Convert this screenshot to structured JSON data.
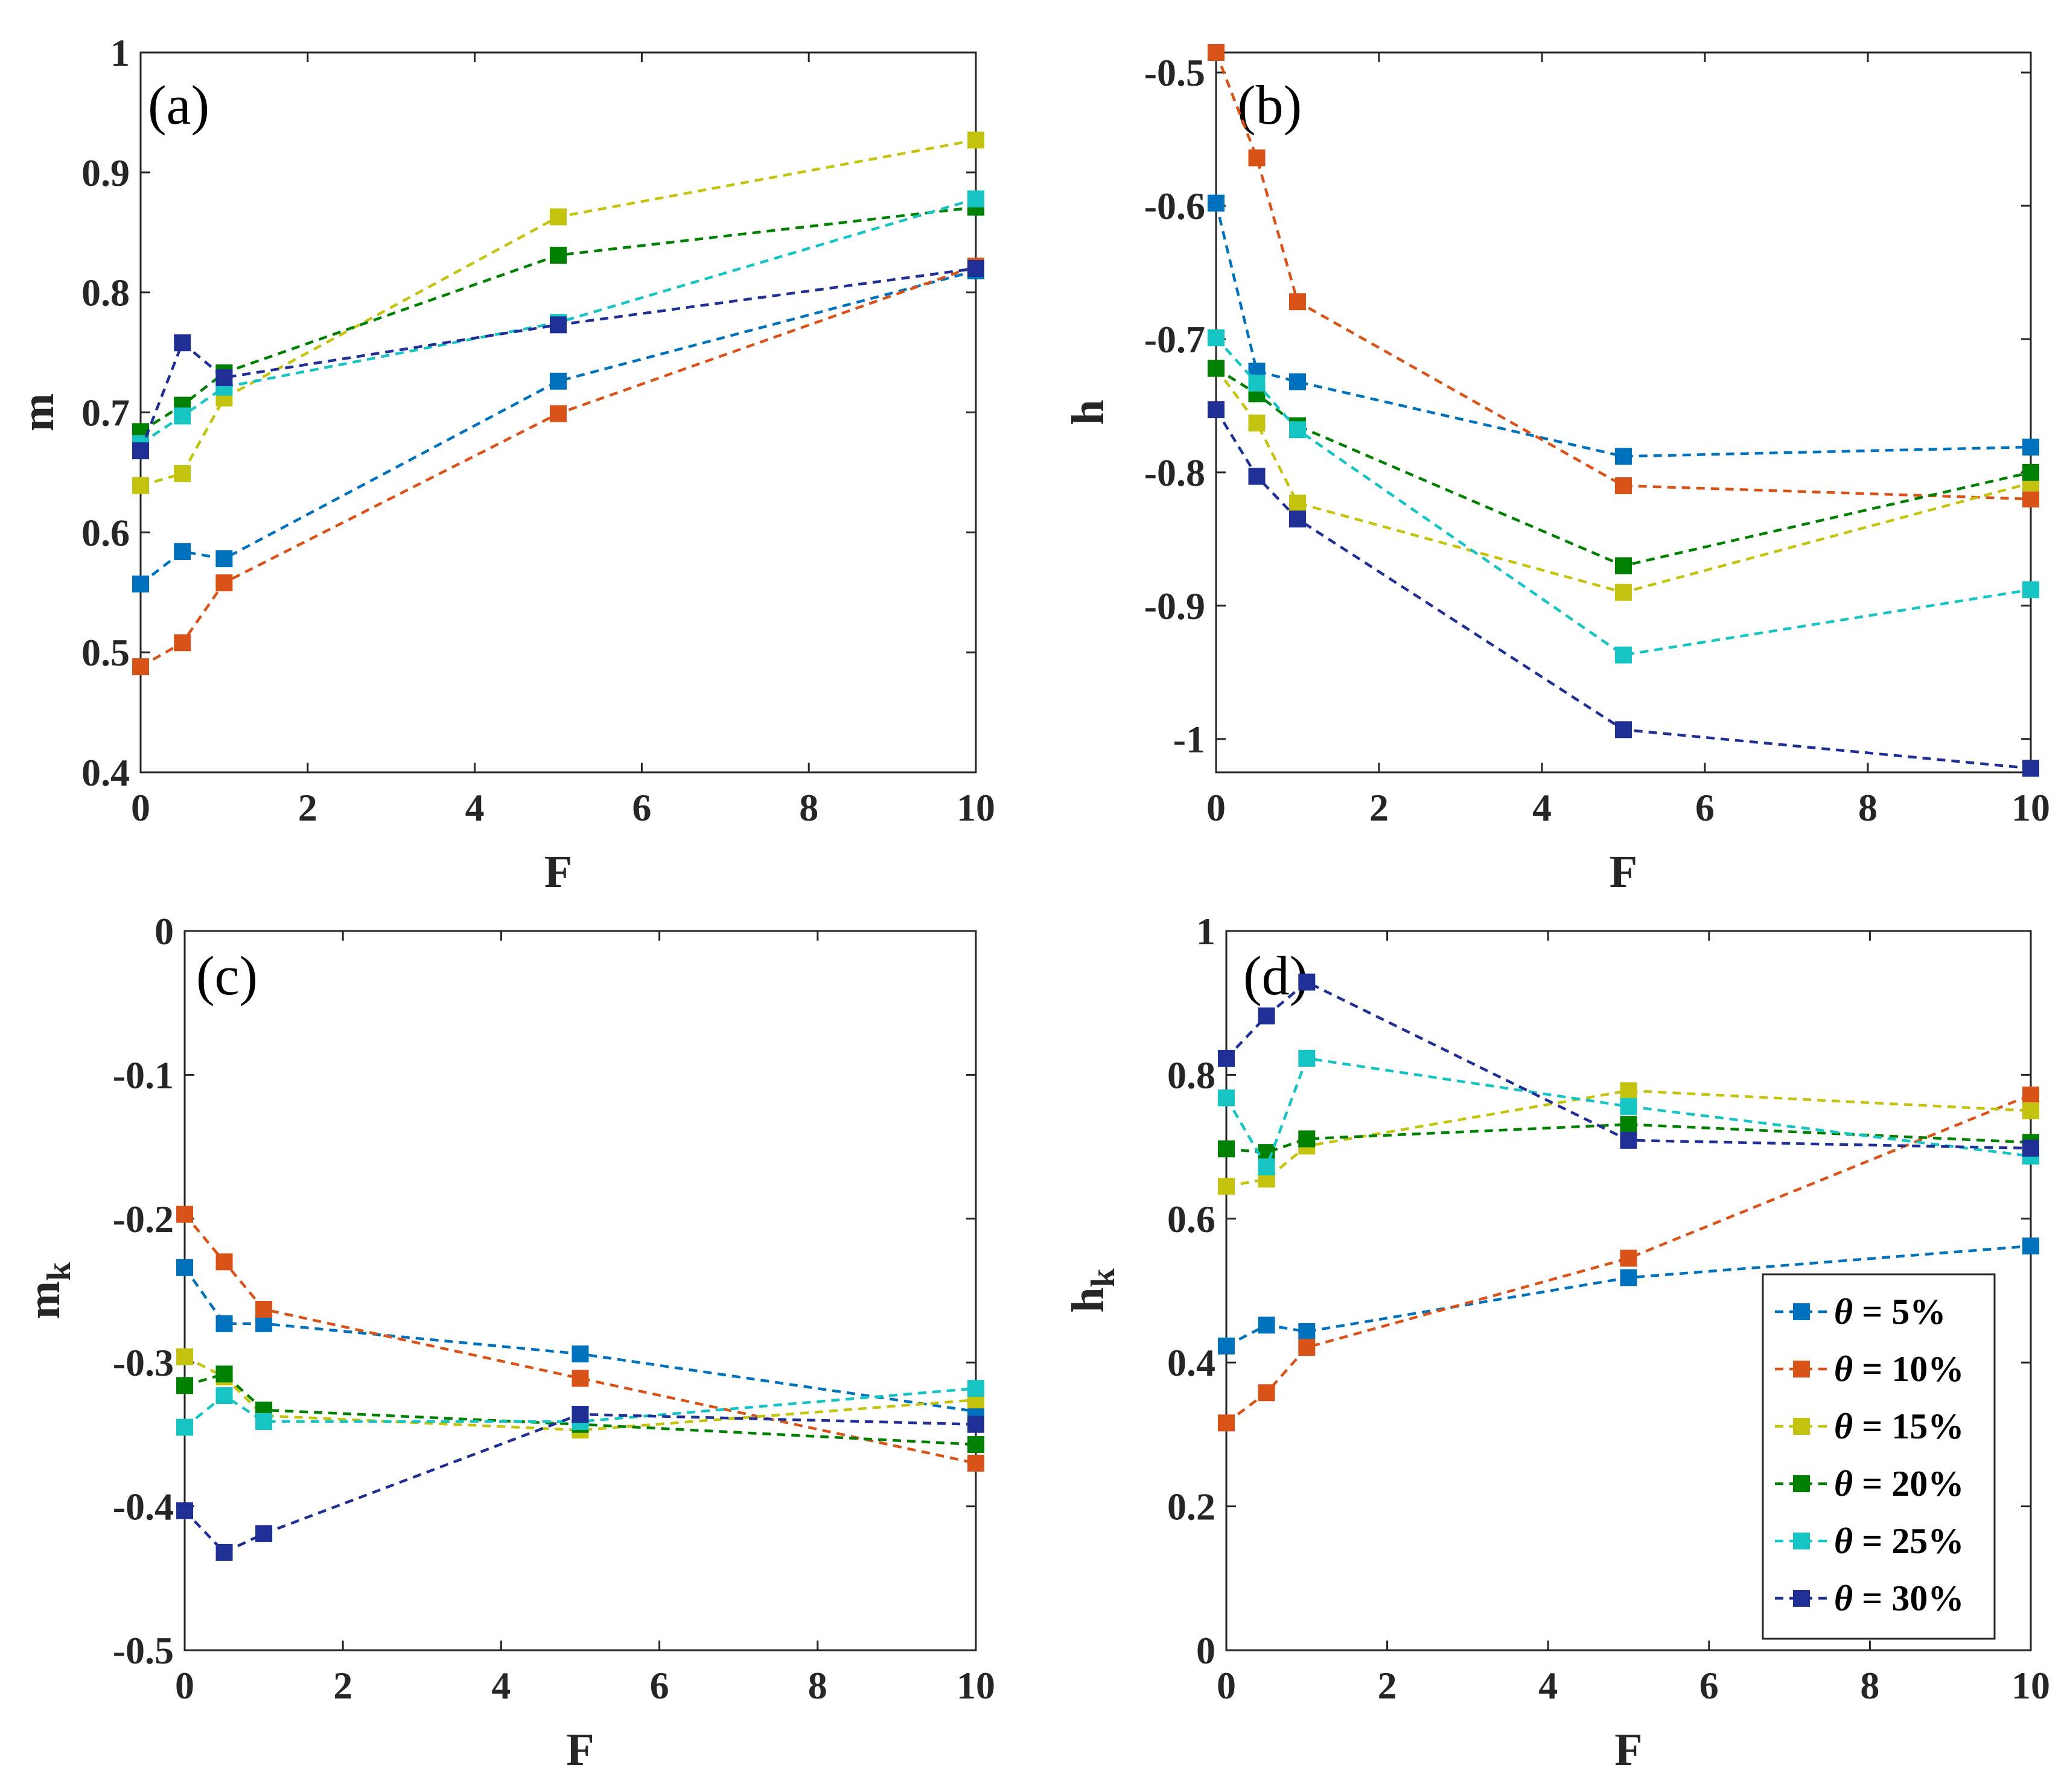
{
  "chart_data": [
    {
      "panel": "(a)",
      "type": "line",
      "xlabel": "F",
      "ylabel": "m",
      "xlim": [
        0,
        10
      ],
      "ylim": [
        0.4,
        1.0
      ],
      "xticks": [
        0,
        2,
        4,
        6,
        8,
        10
      ],
      "xtick_labels": [
        "0",
        "2",
        "4",
        "6",
        "8",
        "10"
      ],
      "yticks": [
        0.4,
        0.5,
        0.6,
        0.7,
        0.8,
        0.9,
        1.0
      ],
      "ytick_labels": [
        "0.4",
        "0.5",
        "0.6",
        "0.7",
        "0.8",
        "0.9",
        "1"
      ],
      "x": [
        0,
        0.5,
        1,
        5,
        10
      ],
      "series": [
        {
          "name": "θ = 5%",
          "values": [
            0.557,
            0.584,
            0.578,
            0.726,
            0.818
          ]
        },
        {
          "name": "θ = 10%",
          "values": [
            0.488,
            0.508,
            0.558,
            0.699,
            0.822
          ]
        },
        {
          "name": "θ = 15%",
          "values": [
            0.639,
            0.649,
            0.712,
            0.863,
            0.927
          ]
        },
        {
          "name": "θ = 20%",
          "values": [
            0.684,
            0.706,
            0.733,
            0.831,
            0.871
          ]
        },
        {
          "name": "θ = 25%",
          "values": [
            0.674,
            0.697,
            0.721,
            0.775,
            0.878
          ]
        },
        {
          "name": "θ = 30%",
          "values": [
            0.668,
            0.758,
            0.729,
            0.773,
            0.82
          ]
        }
      ]
    },
    {
      "panel": "(b)",
      "type": "line",
      "xlabel": "F",
      "ylabel": "h",
      "xlim": [
        0,
        10
      ],
      "ylim": [
        -1.025,
        -0.485
      ],
      "xticks": [
        0,
        2,
        4,
        6,
        8,
        10
      ],
      "xtick_labels": [
        "0",
        "2",
        "4",
        "6",
        "8",
        "10"
      ],
      "yticks": [
        -1.0,
        -0.9,
        -0.8,
        -0.7,
        -0.6,
        -0.5
      ],
      "ytick_labels": [
        "-1",
        "-0.9",
        "-0.8",
        "-0.7",
        "-0.6",
        "-0.5"
      ],
      "x": [
        0,
        0.5,
        1,
        5,
        10
      ],
      "series": [
        {
          "name": "θ = 5%",
          "values": [
            -0.598,
            -0.724,
            -0.732,
            -0.788,
            -0.781
          ]
        },
        {
          "name": "θ = 10%",
          "values": [
            -0.485,
            -0.564,
            -0.672,
            -0.81,
            -0.82
          ]
        },
        {
          "name": "θ = 15%",
          "values": [
            -0.722,
            -0.763,
            -0.823,
            -0.89,
            -0.808
          ]
        },
        {
          "name": "θ = 20%",
          "values": [
            -0.722,
            -0.741,
            -0.765,
            -0.87,
            -0.8
          ]
        },
        {
          "name": "θ = 25%",
          "values": [
            -0.699,
            -0.733,
            -0.768,
            -0.937,
            -0.888
          ]
        },
        {
          "name": "θ = 30%",
          "values": [
            -0.753,
            -0.803,
            -0.835,
            -0.993,
            -1.022
          ]
        }
      ]
    },
    {
      "panel": "(c)",
      "type": "line",
      "xlabel": "F",
      "ylabel": "m",
      "ylabel_sub": "k",
      "xlim": [
        0,
        10
      ],
      "ylim": [
        -0.5,
        0
      ],
      "xticks": [
        0,
        2,
        4,
        6,
        8,
        10
      ],
      "xtick_labels": [
        "0",
        "2",
        "4",
        "6",
        "8",
        "10"
      ],
      "yticks": [
        -0.5,
        -0.4,
        -0.3,
        -0.2,
        -0.1,
        0
      ],
      "ytick_labels": [
        "-0.5",
        "-0.4",
        "-0.3",
        "-0.2",
        "-0.1",
        "0"
      ],
      "x": [
        0,
        0.5,
        1,
        5,
        10
      ],
      "series": [
        {
          "name": "θ = 5%",
          "values": [
            -0.234,
            -0.273,
            -0.273,
            -0.294,
            -0.334
          ]
        },
        {
          "name": "θ = 10%",
          "values": [
            -0.197,
            -0.23,
            -0.263,
            -0.311,
            -0.37
          ]
        },
        {
          "name": "θ = 15%",
          "values": [
            -0.296,
            -0.31,
            -0.337,
            -0.347,
            -0.326
          ]
        },
        {
          "name": "θ = 20%",
          "values": [
            -0.316,
            -0.308,
            -0.333,
            -0.343,
            -0.357
          ]
        },
        {
          "name": "θ = 25%",
          "values": [
            -0.345,
            -0.323,
            -0.341,
            -0.341,
            -0.318
          ]
        },
        {
          "name": "θ = 30%",
          "values": [
            -0.403,
            -0.432,
            -0.419,
            -0.336,
            -0.343
          ]
        }
      ]
    },
    {
      "panel": "(d)",
      "type": "line",
      "xlabel": "F",
      "ylabel": "h",
      "ylabel_sub": "k",
      "xlim": [
        0,
        10
      ],
      "ylim": [
        0,
        1.0
      ],
      "xticks": [
        0,
        2,
        4,
        6,
        8,
        10
      ],
      "xtick_labels": [
        "0",
        "2",
        "4",
        "6",
        "8",
        "10"
      ],
      "yticks": [
        0,
        0.2,
        0.4,
        0.6,
        0.8,
        1.0
      ],
      "ytick_labels": [
        "0",
        "0.2",
        "0.4",
        "0.6",
        "0.8",
        "1"
      ],
      "x": [
        0,
        0.5,
        1,
        5,
        10
      ],
      "series": [
        {
          "name": "θ = 5%",
          "values": [
            0.423,
            0.452,
            0.443,
            0.518,
            0.562
          ]
        },
        {
          "name": "θ = 10%",
          "values": [
            0.316,
            0.358,
            0.421,
            0.545,
            0.772
          ]
        },
        {
          "name": "θ = 15%",
          "values": [
            0.645,
            0.655,
            0.701,
            0.778,
            0.75
          ]
        },
        {
          "name": "θ = 20%",
          "values": [
            0.697,
            0.692,
            0.711,
            0.731,
            0.706
          ]
        },
        {
          "name": "θ = 25%",
          "values": [
            0.768,
            0.672,
            0.823,
            0.756,
            0.687
          ]
        },
        {
          "name": "θ = 30%",
          "values": [
            0.823,
            0.882,
            0.929,
            0.709,
            0.698
          ]
        }
      ],
      "legend": {
        "location": "bottom-right"
      }
    }
  ],
  "legend_items": [
    {
      "theta": "θ",
      "eq": " = 5%"
    },
    {
      "theta": "θ",
      "eq": " = 10%"
    },
    {
      "theta": "θ",
      "eq": " = 15%"
    },
    {
      "theta": "θ",
      "eq": " = 20%"
    },
    {
      "theta": "θ",
      "eq": " = 25%"
    },
    {
      "theta": "θ",
      "eq": " = 30%"
    }
  ],
  "colors": [
    "#0072BD",
    "#D95319",
    "#C4C410",
    "#008000",
    "#17C4C4",
    "#1F2F96"
  ]
}
